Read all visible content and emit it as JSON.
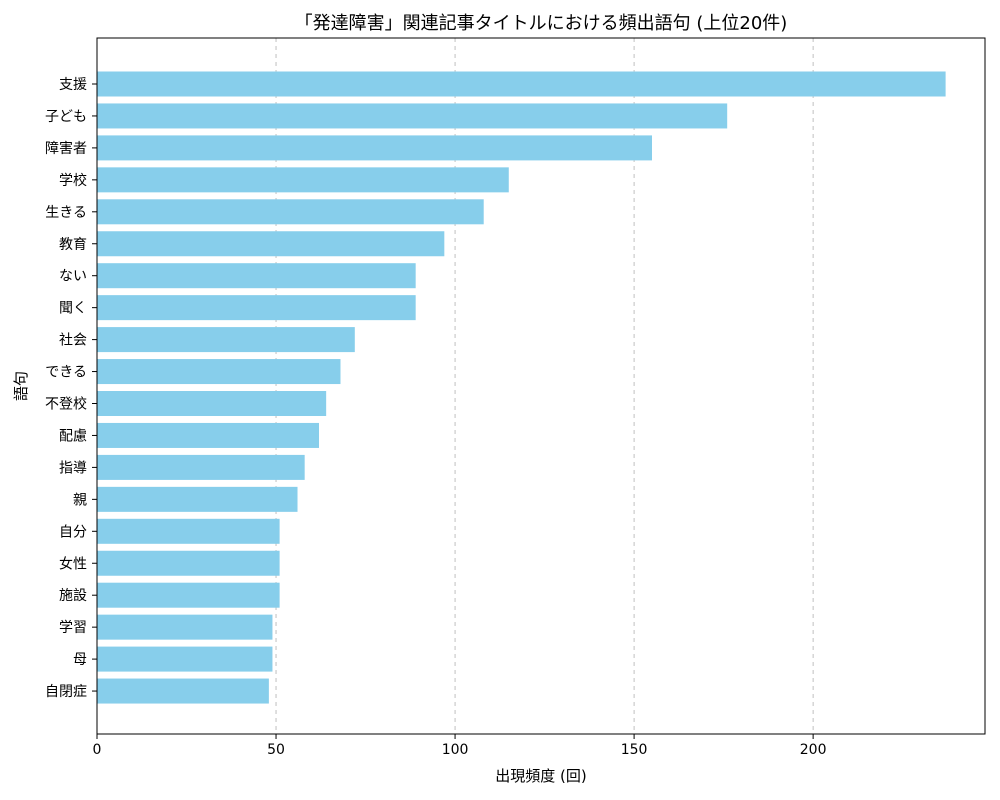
{
  "chart_data": {
    "type": "bar",
    "orientation": "horizontal",
    "title": "「発達障害」関連記事タイトルにおける頻出語句 (上位20件)",
    "xlabel": "出現頻度 (回)",
    "ylabel": "語句",
    "categories": [
      "支援",
      "子ども",
      "障害者",
      "学校",
      "生きる",
      "教育",
      "ない",
      "聞く",
      "社会",
      "できる",
      "不登校",
      "配慮",
      "指導",
      "親",
      "自分",
      "女性",
      "施設",
      "学習",
      "母",
      "自閉症"
    ],
    "values": [
      237,
      176,
      155,
      115,
      108,
      97,
      89,
      89,
      72,
      68,
      64,
      62,
      58,
      56,
      51,
      51,
      51,
      49,
      49,
      48
    ],
    "xlim": [
      0,
      248
    ],
    "xticks": [
      0,
      50,
      100,
      150,
      200
    ],
    "grid": "x-dashed",
    "bar_color": "#87ceeb"
  }
}
